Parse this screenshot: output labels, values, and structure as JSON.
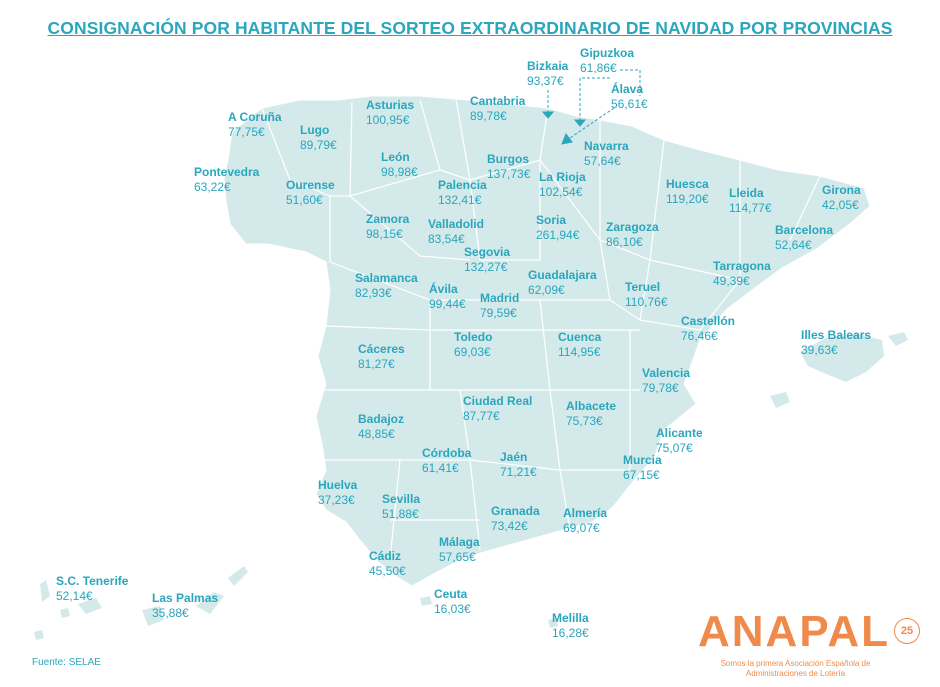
{
  "title": "CONSIGNACIÓN POR HABITANTE DEL SORTEO EXTRAORDINARIO DE NAVIDAD POR PROVINCIAS",
  "source": "Fuente: SELAE",
  "colors": {
    "accent": "#2aa6bd",
    "land": "#d4e9e9",
    "logo": "#f08a4b"
  },
  "provinces": [
    {
      "name": "Gipuzkoa",
      "value": "61,86€"
    },
    {
      "name": "Bizkaia",
      "value": "93,37€"
    },
    {
      "name": "Álava",
      "value": "56,61€"
    },
    {
      "name": "A Coruña",
      "value": "77,75€"
    },
    {
      "name": "Asturias",
      "value": "100,95€"
    },
    {
      "name": "Cantabria",
      "value": "89,78€"
    },
    {
      "name": "Lugo",
      "value": "89,79€"
    },
    {
      "name": "Navarra",
      "value": "57,64€"
    },
    {
      "name": "León",
      "value": "98,98€"
    },
    {
      "name": "Burgos",
      "value": "137,73€"
    },
    {
      "name": "Pontevedra",
      "value": "63,22€"
    },
    {
      "name": "La Rioja",
      "value": "102,54€"
    },
    {
      "name": "Huesca",
      "value": "119,20€"
    },
    {
      "name": "Ourense",
      "value": "51,60€"
    },
    {
      "name": "Palencia",
      "value": "132,41€"
    },
    {
      "name": "Lleida",
      "value": "114,77€"
    },
    {
      "name": "Girona",
      "value": "42,05€"
    },
    {
      "name": "Zamora",
      "value": "98,15€"
    },
    {
      "name": "Valladolid",
      "value": "83,54€"
    },
    {
      "name": "Soria",
      "value": "261,94€"
    },
    {
      "name": "Zaragoza",
      "value": "86,10€"
    },
    {
      "name": "Barcelona",
      "value": "52,64€"
    },
    {
      "name": "Segovia",
      "value": "132,27€"
    },
    {
      "name": "Tarragona",
      "value": "49,39€"
    },
    {
      "name": "Salamanca",
      "value": "82,93€"
    },
    {
      "name": "Guadalajara",
      "value": "62,09€"
    },
    {
      "name": "Ávila",
      "value": "99,44€"
    },
    {
      "name": "Teruel",
      "value": "110,76€"
    },
    {
      "name": "Madrid",
      "value": "79,59€"
    },
    {
      "name": "Castellón",
      "value": "76,46€"
    },
    {
      "name": "Illes Balears",
      "value": "39,63€"
    },
    {
      "name": "Toledo",
      "value": "69,03€"
    },
    {
      "name": "Cáceres",
      "value": "81,27€"
    },
    {
      "name": "Cuenca",
      "value": "114,95€"
    },
    {
      "name": "Valencia",
      "value": "79,78€"
    },
    {
      "name": "Ciudad Real",
      "value": "87,77€"
    },
    {
      "name": "Albacete",
      "value": "75,73€"
    },
    {
      "name": "Badajoz",
      "value": "48,85€"
    },
    {
      "name": "Alicante",
      "value": "75,07€"
    },
    {
      "name": "Córdoba",
      "value": "61,41€"
    },
    {
      "name": "Jaén",
      "value": "71,21€"
    },
    {
      "name": "Murcia",
      "value": "67,15€"
    },
    {
      "name": "Huelva",
      "value": "37,23€"
    },
    {
      "name": "Sevilla",
      "value": "51,88€"
    },
    {
      "name": "Granada",
      "value": "73,42€"
    },
    {
      "name": "Almería",
      "value": "69,07€"
    },
    {
      "name": "Málaga",
      "value": "57,65€"
    },
    {
      "name": "Cádiz",
      "value": "45,50€"
    },
    {
      "name": "S.C. Tenerife",
      "value": "52,14€"
    },
    {
      "name": "Las Palmas",
      "value": "35,88€"
    },
    {
      "name": "Ceuta",
      "value": "16,03€"
    },
    {
      "name": "Melilla",
      "value": "16,28€"
    }
  ],
  "logo": {
    "wordmark": "ANAPAL",
    "badge": "25",
    "tagline": "Somos la primera Asociación Española de Administraciones de Lotería"
  }
}
